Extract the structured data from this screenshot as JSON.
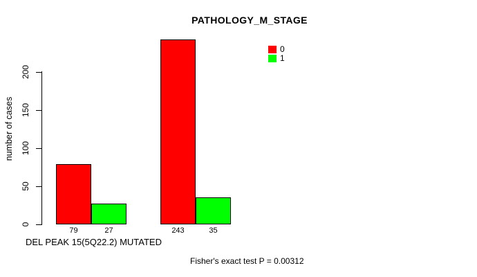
{
  "chart_data": {
    "type": "bar",
    "title": "PATHOLOGY_M_STAGE",
    "ylabel": "number of cases",
    "xlabel": "DEL PEAK 15(5Q22.2) MUTATED",
    "footnote": "Fisher's exact test P = 0.00312",
    "grid": false,
    "background_color": "#ffffff",
    "bar_border_color": "#000000",
    "yticks": [
      0,
      50,
      100,
      150,
      200
    ],
    "ylim": [
      0,
      245
    ],
    "legend": {
      "position": "top-right",
      "entries": [
        {
          "label": "0",
          "color": "#ff0000"
        },
        {
          "label": "1",
          "color": "#00ff00"
        }
      ]
    },
    "series": [
      {
        "name": "0",
        "color": "#ff0000",
        "values": [
          79,
          243
        ]
      },
      {
        "name": "1",
        "color": "#00ff00",
        "values": [
          27,
          35
        ]
      }
    ],
    "groups": [
      {
        "bars": [
          {
            "series": "0",
            "value": 79,
            "label": "79"
          },
          {
            "series": "1",
            "value": 27,
            "label": "27"
          }
        ]
      },
      {
        "bars": [
          {
            "series": "0",
            "value": 243,
            "label": "243"
          },
          {
            "series": "1",
            "value": 35,
            "label": "35"
          }
        ]
      }
    ]
  }
}
